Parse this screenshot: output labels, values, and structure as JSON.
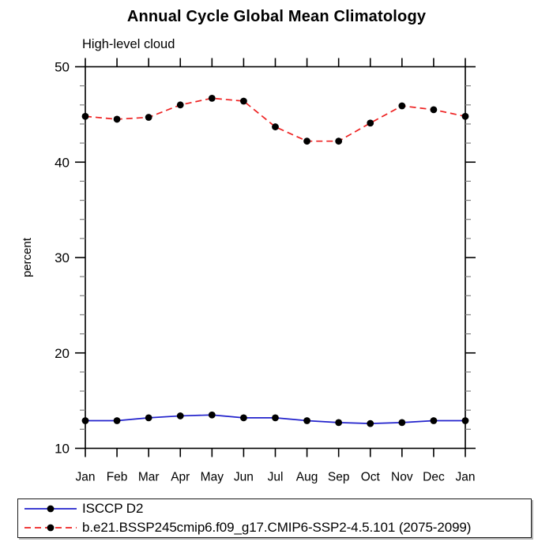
{
  "chart_data": {
    "type": "line",
    "title": "Annual Cycle Global Mean Climatology",
    "subtitle": "High-level cloud",
    "ylabel": "percent",
    "xlabel": "",
    "categories": [
      "Jan",
      "Feb",
      "Mar",
      "Apr",
      "May",
      "Jun",
      "Jul",
      "Aug",
      "Sep",
      "Oct",
      "Nov",
      "Dec",
      "Jan"
    ],
    "ylim": [
      10,
      50
    ],
    "ytick_major": [
      10,
      20,
      30,
      40,
      50
    ],
    "ytick_minor_step": 2,
    "grid": false,
    "legend_position": "bottom-left-box",
    "axis_color": "#000000",
    "minor_tick_color": "#808080",
    "marker": "filled-circle",
    "marker_color": "#000000",
    "series": [
      {
        "name": "ISCCP D2",
        "color": "#2222cc",
        "style": "solid",
        "values": [
          12.9,
          12.9,
          13.2,
          13.4,
          13.5,
          13.2,
          13.2,
          12.9,
          12.7,
          12.6,
          12.7,
          12.9,
          12.9
        ]
      },
      {
        "name": "b.e21.BSSP245cmip6.f09_g17.CMIP6-SSP2-4.5.101 (2075-2099)",
        "color": "#ee2222",
        "style": "dashed",
        "values": [
          44.8,
          44.5,
          44.7,
          46.0,
          46.7,
          46.4,
          43.7,
          42.2,
          42.2,
          44.1,
          45.9,
          45.5,
          44.8
        ]
      }
    ]
  }
}
